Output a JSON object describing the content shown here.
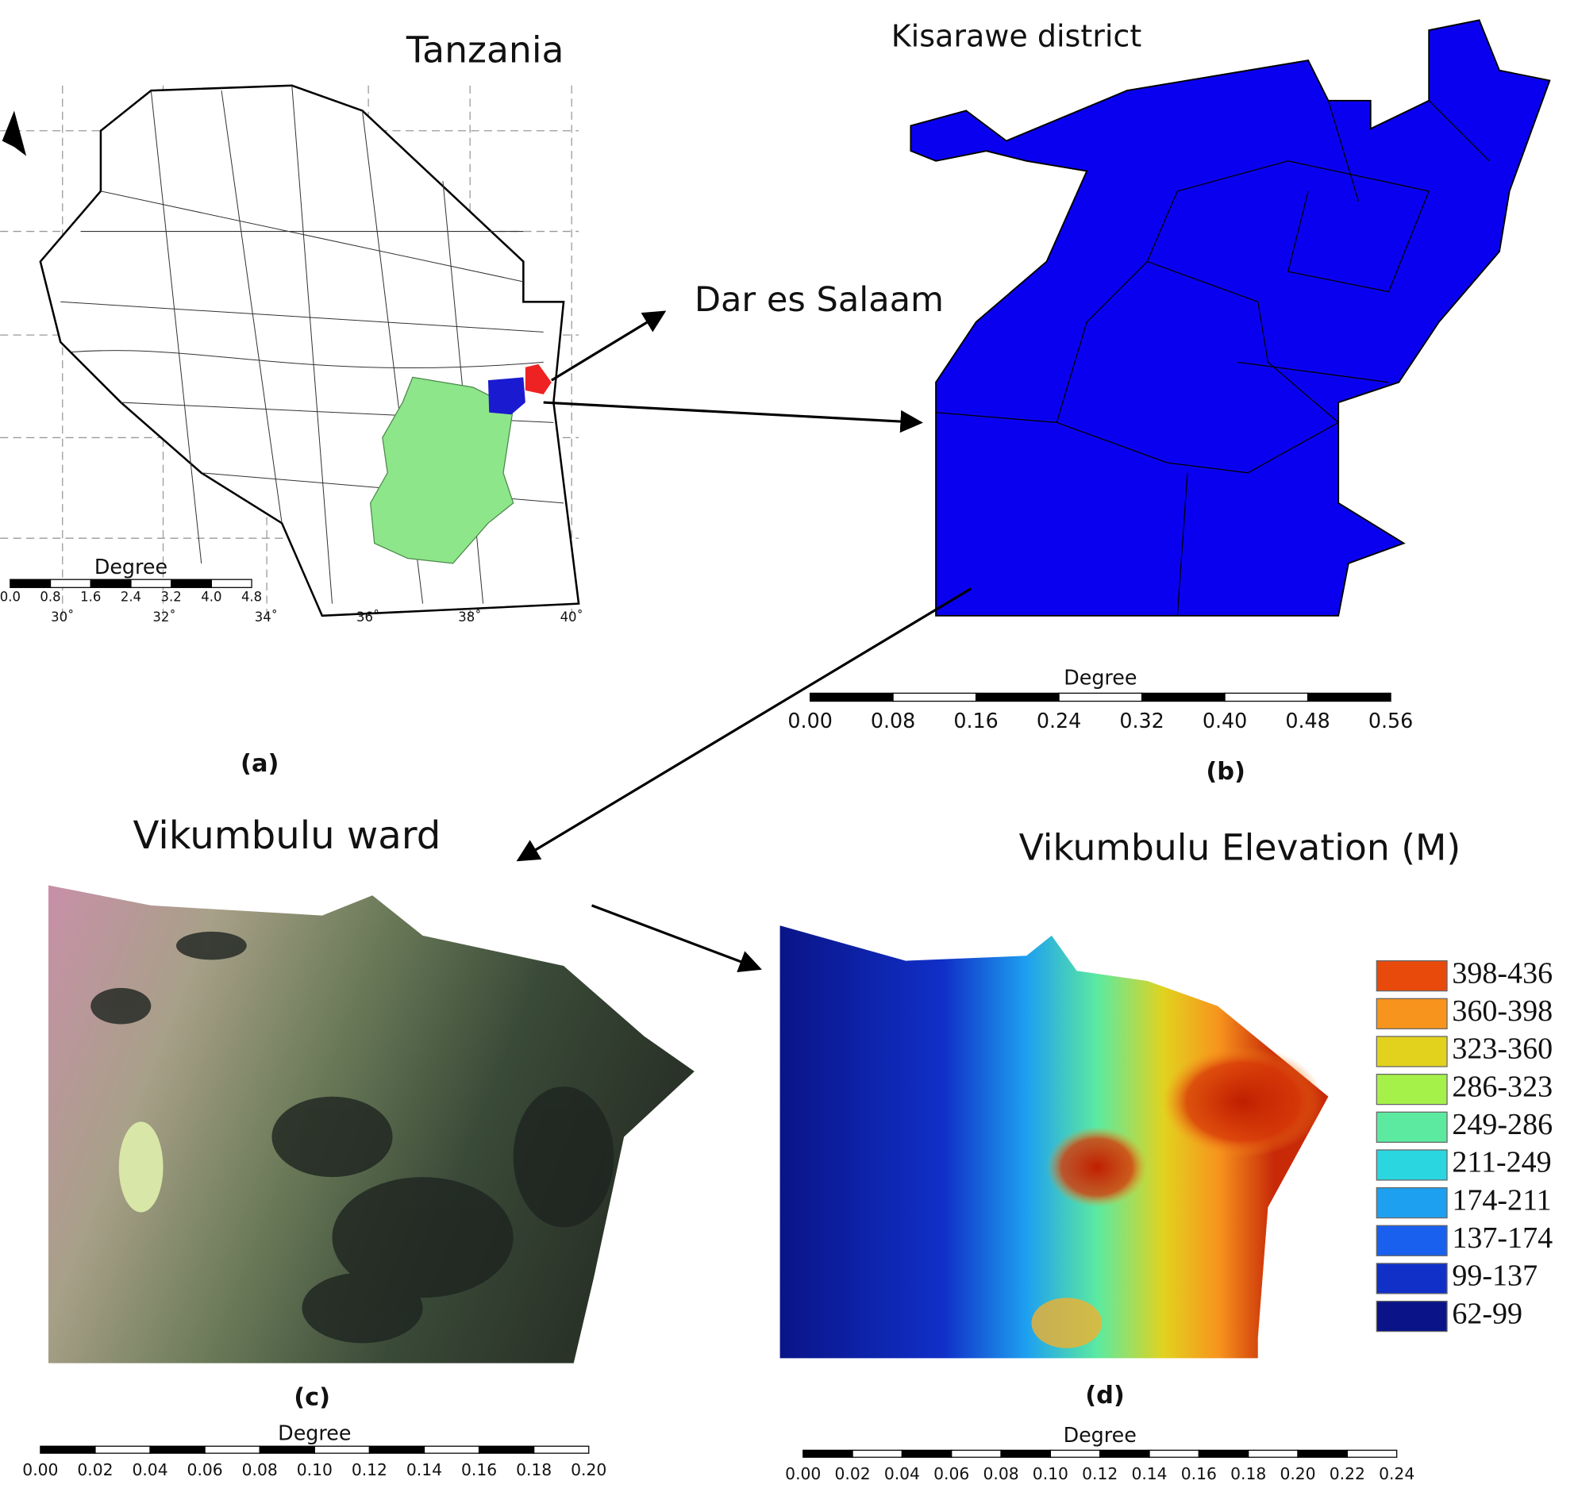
{
  "annotation": "Dar es Salaam",
  "panels": [
    {
      "title": "Tanzania",
      "caption": "(a)",
      "scale_label": "Degree",
      "scale_ticks": [
        "0.0",
        "0.8",
        "1.6",
        "2.4",
        "3.2",
        "4.0",
        "4.8"
      ],
      "longitude_labels": [
        "30˚",
        "32˚",
        "34˚",
        "36˚",
        "38˚",
        "40˚"
      ]
    },
    {
      "title": "Kisarawe district",
      "caption": "(b)",
      "scale_label": "Degree",
      "scale_ticks": [
        "0.00",
        "0.08",
        "0.16",
        "0.24",
        "0.32",
        "0.40",
        "0.48",
        "0.56"
      ]
    },
    {
      "title": "Vikumbulu ward",
      "caption": "(c)",
      "scale_label": "Degree",
      "scale_ticks": [
        "0.00",
        "0.02",
        "0.04",
        "0.06",
        "0.08",
        "0.10",
        "0.12",
        "0.14",
        "0.16",
        "0.18",
        "0.20"
      ]
    },
    {
      "title": "Vikumbulu Elevation (M)",
      "caption": "(d)",
      "scale_label": "Degree",
      "scale_ticks": [
        "0.00",
        "0.02",
        "0.04",
        "0.06",
        "0.08",
        "0.10",
        "0.12",
        "0.14",
        "0.16",
        "0.18",
        "0.20",
        "0.22",
        "0.24"
      ],
      "legend": [
        {
          "label": "398-436",
          "color": "#e84a0c"
        },
        {
          "label": "360-398",
          "color": "#f7941d"
        },
        {
          "label": "323-360",
          "color": "#e2d21e"
        },
        {
          "label": "286-323",
          "color": "#a6f04a"
        },
        {
          "label": "249-286",
          "color": "#5ceaa0"
        },
        {
          "label": "211-249",
          "color": "#2ad6e0"
        },
        {
          "label": "174-211",
          "color": "#1ea0f0"
        },
        {
          "label": "137-174",
          "color": "#1a60ee"
        },
        {
          "label": "99-137",
          "color": "#1030c8"
        },
        {
          "label": "62-99",
          "color": "#0a1488"
        }
      ]
    }
  ]
}
